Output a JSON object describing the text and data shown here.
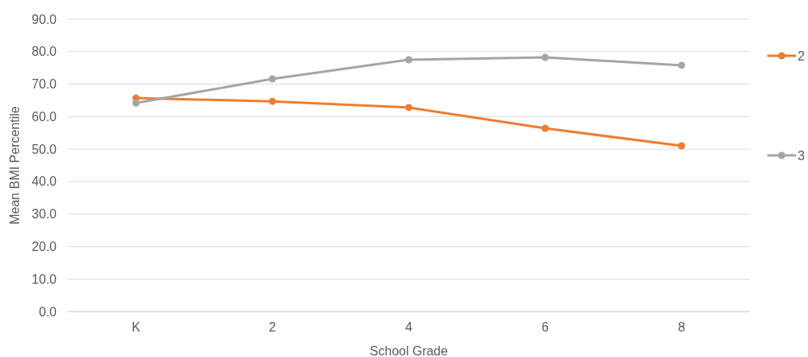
{
  "chart_data": {
    "type": "line",
    "xlabel": "School Grade",
    "ylabel": "Mean BMI Percentile",
    "categories": [
      "K",
      "2",
      "4",
      "6",
      "8"
    ],
    "series": [
      {
        "name": "2",
        "color": "#ed7d31",
        "values": [
          65.7,
          64.7,
          62.8,
          56.4,
          51.0
        ]
      },
      {
        "name": "3",
        "color": "#a5a5a5",
        "values": [
          64.2,
          71.6,
          77.5,
          78.2,
          75.8
        ]
      }
    ],
    "ylim": [
      0,
      90
    ],
    "yticks": [
      {
        "value": 0,
        "label": "0.0"
      },
      {
        "value": 10,
        "label": "10.0"
      },
      {
        "value": 20,
        "label": "20.0"
      },
      {
        "value": 30,
        "label": "30.0"
      },
      {
        "value": 40,
        "label": "40.0"
      },
      {
        "value": 50,
        "label": "50.0"
      },
      {
        "value": 60,
        "label": "60.0"
      },
      {
        "value": 70,
        "label": "70.0"
      },
      {
        "value": 80,
        "label": "80.0"
      },
      {
        "value": 90,
        "label": "90.0"
      }
    ],
    "grid": "y",
    "legend": "right",
    "marker": "circle",
    "line_style": "solid"
  }
}
